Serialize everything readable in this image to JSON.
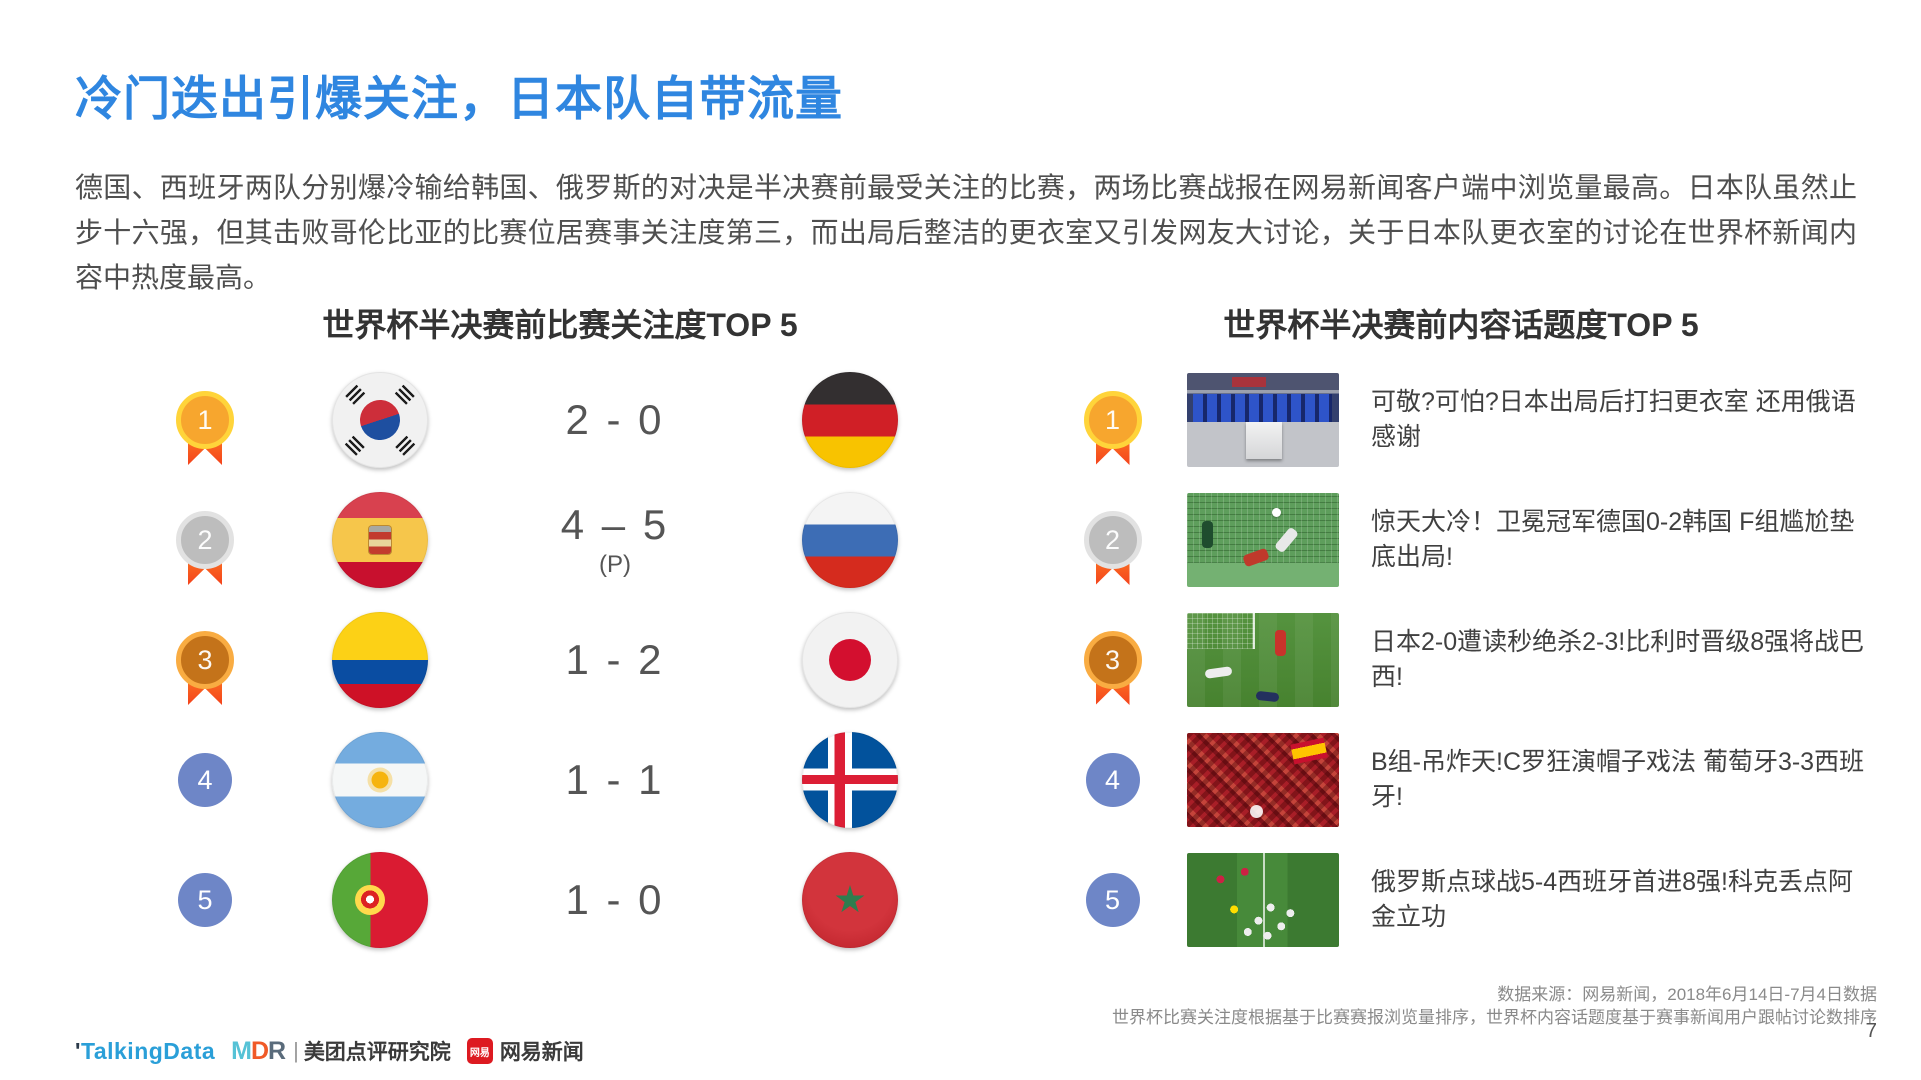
{
  "slide": {
    "title": "冷门迭出引爆关注，日本队自带流量",
    "intro": "德国、西班牙两队分别爆冷输给韩国、俄罗斯的对决是半决赛前最受关注的比赛，两场比赛战报在网易新闻客户端中浏览量最高。日本队虽然止步十六强，但其击败哥伦比亚的比赛位居赛事关注度第三，而出局后整洁的更衣室又引发网友大讨论，关于日本队更衣室的讨论在世界杯新闻内容中热度最高。",
    "page_number": "7"
  },
  "matches": {
    "title": "世界杯半决赛前比赛关注度TOP 5",
    "rows": [
      {
        "rank": "1",
        "rank_style": "gold-medal",
        "home_flag": "south-korea",
        "score": "2 - 0",
        "score_note": "",
        "away_flag": "germany"
      },
      {
        "rank": "2",
        "rank_style": "silver-medal",
        "home_flag": "spain",
        "score": "4 – 5",
        "score_note": "(P)",
        "away_flag": "russia"
      },
      {
        "rank": "3",
        "rank_style": "bronze-medal",
        "home_flag": "colombia",
        "score": "1 - 2",
        "score_note": "",
        "away_flag": "japan"
      },
      {
        "rank": "4",
        "rank_style": "blue-circle",
        "home_flag": "argentina",
        "score": "1 - 1",
        "score_note": "",
        "away_flag": "iceland"
      },
      {
        "rank": "5",
        "rank_style": "blue-circle",
        "home_flag": "portugal",
        "score": "1 - 0",
        "score_note": "",
        "away_flag": "morocco"
      }
    ]
  },
  "topics": {
    "title": "世界杯半决赛前内容话题度TOP 5",
    "rows": [
      {
        "rank": "1",
        "rank_style": "gold-medal",
        "thumbnail": "japan-locker-room-photo",
        "headline": "可敬?可怕?日本出局后打扫更衣室 还用俄语感谢"
      },
      {
        "rank": "2",
        "rank_style": "silver-medal",
        "thumbnail": "germany-korea-goal-photo",
        "headline": "惊天大冷！卫冕冠军德国0-2韩国 F组尴尬垫底出局!"
      },
      {
        "rank": "3",
        "rank_style": "bronze-medal",
        "thumbnail": "japan-belgium-match-photo",
        "headline": "日本2-0遭读秒绝杀2-3!比利时晋级8强将战巴西!"
      },
      {
        "rank": "4",
        "rank_style": "blue-circle",
        "thumbnail": "spain-fans-crowd-photo",
        "headline": "B组-吊炸天!C罗狂演帽子戏法 葡萄牙3-3西班牙!"
      },
      {
        "rank": "5",
        "rank_style": "blue-circle",
        "thumbnail": "russia-spain-penalty-photo",
        "headline": "俄罗斯点球战5-4西班牙首进8强!科克丢点阿金立功"
      }
    ]
  },
  "footer": {
    "source_line1": "数据来源：网易新闻，2018年6月14日-7月4日数据",
    "source_line2": "世界杯比赛关注度根据基于比赛赛报浏览量排序，世界杯内容话题度基于赛事新闻用户跟帖讨论数排序"
  },
  "logos": {
    "talkingdata": "TalkingData",
    "mdr_m": "M",
    "mdr_d": "D",
    "mdr_r": "R",
    "mdr_label": "美团点评研究院",
    "netease_badge": "网易",
    "netease_label": "网易新闻"
  },
  "colors": {
    "title_blue": "#2F86E0",
    "ribbon_orange": "#F4431C",
    "rank_blue": "#6E86C7"
  }
}
